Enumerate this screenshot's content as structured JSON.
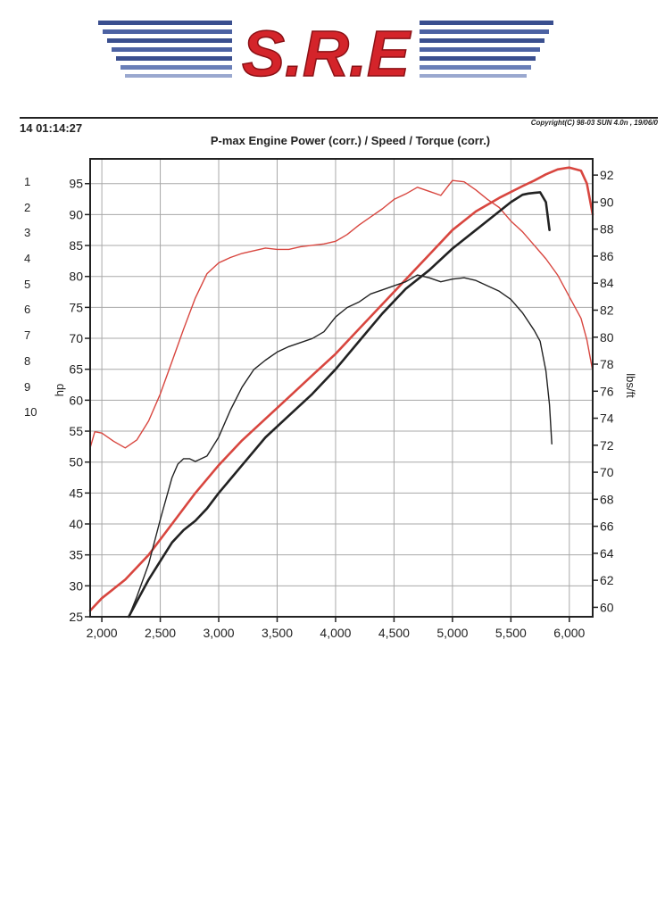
{
  "header": {
    "logo_text": "S.R.E",
    "timestamp": "14 01:14:27",
    "copyright": "Copyright(C) 98-03 SUN 4.0n , 19/06/0",
    "title": "P-max Engine Power  (corr.) / Speed / Torque (corr.)"
  },
  "run_numbers": [
    "1",
    "2",
    "3",
    "4",
    "5",
    "6",
    "7",
    "8",
    "9",
    "10"
  ],
  "colors": {
    "red": "#d8463f",
    "black": "#222222",
    "grid": "#a8a8a8",
    "logo": "#d4242a",
    "logo_stripe": "#3a4f8f"
  },
  "chart_data": {
    "type": "line",
    "title": "P-max Engine Power  (corr.) / Speed / Torque (corr.)",
    "xlabel": "",
    "ylabel": "hp",
    "y2label": "lbs/ft",
    "xlim": [
      1900,
      6200
    ],
    "ylim": [
      25,
      99
    ],
    "y2lim": [
      59.3,
      93.2
    ],
    "xticks": [
      2000,
      2500,
      3000,
      3500,
      4000,
      4500,
      5000,
      5500,
      6000
    ],
    "xtick_labels": [
      "2,000",
      "2,500",
      "3,000",
      "3,500",
      "4,000",
      "4,500",
      "5,000",
      "5,500",
      "6,000"
    ],
    "yticks": [
      25,
      30,
      35,
      40,
      45,
      50,
      55,
      60,
      65,
      70,
      75,
      80,
      85,
      90,
      95
    ],
    "y2ticks": [
      60,
      62,
      64,
      66,
      68,
      70,
      72,
      74,
      76,
      78,
      80,
      82,
      84,
      86,
      88,
      90,
      92
    ],
    "grid": true,
    "series": [
      {
        "name": "Torque run 1 (red)",
        "axis": "y2",
        "color": "red",
        "x": [
          1900,
          1940,
          2000,
          2100,
          2200,
          2300,
          2400,
          2500,
          2600,
          2700,
          2800,
          2900,
          3000,
          3100,
          3200,
          3300,
          3400,
          3500,
          3600,
          3700,
          3800,
          3900,
          4000,
          4100,
          4200,
          4300,
          4400,
          4500,
          4600,
          4700,
          4800,
          4900,
          5000,
          5100,
          5200,
          5300,
          5400,
          5500,
          5600,
          5700,
          5800,
          5900,
          6000,
          6100,
          6150,
          6200
        ],
        "values": [
          71.8,
          73,
          72.9,
          72.3,
          71.8,
          72.4,
          73.8,
          75.8,
          78.2,
          80.6,
          82.9,
          84.7,
          85.5,
          85.9,
          86.2,
          86.4,
          86.6,
          86.5,
          86.5,
          86.7,
          86.8,
          86.9,
          87.1,
          87.6,
          88.3,
          88.9,
          89.5,
          90.2,
          90.6,
          91.1,
          90.8,
          90.5,
          91.6,
          91.5,
          90.9,
          90.2,
          89.6,
          88.6,
          87.8,
          86.8,
          85.8,
          84.6,
          83,
          81.4,
          79.8,
          77.5
        ]
      },
      {
        "name": "Power run 1 (red)",
        "axis": "y",
        "color": "red",
        "x": [
          1900,
          2000,
          2200,
          2400,
          2600,
          2800,
          3000,
          3200,
          3400,
          3600,
          3800,
          4000,
          4200,
          4400,
          4600,
          4800,
          5000,
          5200,
          5400,
          5600,
          5700,
          5800,
          5900,
          6000,
          6100,
          6150,
          6200
        ],
        "values": [
          26,
          28,
          31,
          35,
          40,
          45,
          49.5,
          53.5,
          57,
          60.5,
          64,
          67.5,
          71.5,
          75.5,
          79.5,
          83.5,
          87.5,
          90.5,
          92.7,
          94.6,
          95.5,
          96.5,
          97.3,
          97.6,
          97.1,
          95,
          90
        ]
      },
      {
        "name": "Torque run 2 (black)",
        "axis": "y2",
        "color": "black",
        "x": [
          2230,
          2300,
          2400,
          2500,
          2600,
          2650,
          2700,
          2750,
          2800,
          2900,
          3000,
          3100,
          3200,
          3300,
          3400,
          3500,
          3600,
          3700,
          3800,
          3900,
          4000,
          4100,
          4200,
          4300,
          4400,
          4500,
          4600,
          4700,
          4800,
          4900,
          5000,
          5100,
          5200,
          5300,
          5400,
          5500,
          5600,
          5700,
          5750,
          5800,
          5830,
          5850
        ],
        "values": [
          59.3,
          60.8,
          63.2,
          66.5,
          69.6,
          70.6,
          71,
          71,
          70.8,
          71.2,
          72.6,
          74.6,
          76.3,
          77.6,
          78.3,
          78.9,
          79.3,
          79.6,
          79.9,
          80.4,
          81.5,
          82.2,
          82.6,
          83.2,
          83.5,
          83.8,
          84.1,
          84.6,
          84.4,
          84.1,
          84.3,
          84.4,
          84.2,
          83.8,
          83.4,
          82.8,
          81.8,
          80.5,
          79.7,
          77.5,
          75,
          72.1
        ]
      },
      {
        "name": "Power run 2 (black)",
        "axis": "y",
        "color": "black",
        "x": [
          2230,
          2300,
          2400,
          2500,
          2600,
          2700,
          2800,
          2900,
          3000,
          3200,
          3400,
          3600,
          3800,
          4000,
          4200,
          4400,
          4600,
          4800,
          5000,
          5200,
          5400,
          5500,
          5600,
          5650,
          5700,
          5750,
          5800,
          5830
        ],
        "values": [
          25,
          27.5,
          31,
          34,
          37,
          39,
          40.5,
          42.5,
          45,
          49.5,
          54,
          57.5,
          61,
          65,
          69.5,
          74,
          78,
          81,
          84.5,
          87.5,
          90.5,
          92,
          93.2,
          93.4,
          93.5,
          93.6,
          92,
          87.5
        ]
      }
    ]
  }
}
